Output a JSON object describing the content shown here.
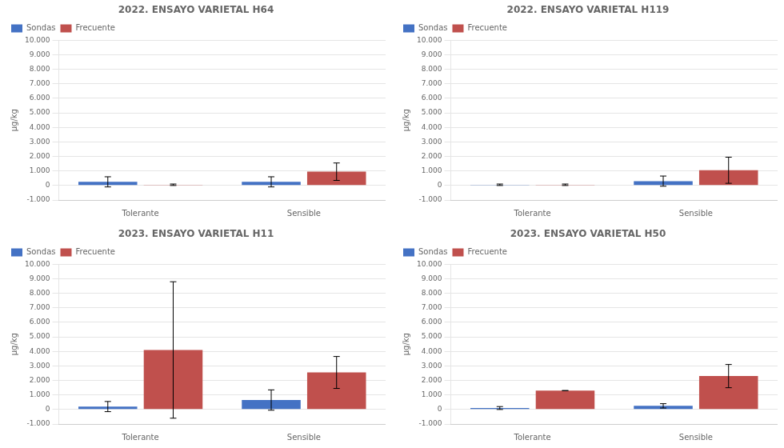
{
  "chart_data": [
    {
      "type": "bar",
      "title": "2022. ENSAYO VARIETAL H64",
      "ylabel": "μg/kg",
      "categories": [
        "Tolerante",
        "Sensible"
      ],
      "series": [
        {
          "name": "Sondas",
          "color": "#4472C4",
          "values": [
            250,
            250
          ],
          "errors": [
            350,
            350
          ]
        },
        {
          "name": "Frecuente",
          "color": "#C0504D",
          "values": [
            50,
            950
          ],
          "errors": [
            50,
            600
          ]
        }
      ],
      "ylim": [
        -1000,
        10000
      ],
      "yticks": [
        {
          "value": -1000,
          "label": "-1.000"
        },
        0,
        {
          "value": 1000,
          "label": "1.000"
        },
        {
          "value": 2000,
          "label": "2.000"
        },
        {
          "value": 3000,
          "label": "3.000"
        },
        {
          "value": 4000,
          "label": "4.000"
        },
        {
          "value": 5000,
          "label": "5.000"
        },
        {
          "value": 6000,
          "label": "6.000"
        },
        {
          "value": 7000,
          "label": "7.000"
        },
        {
          "value": 8000,
          "label": "8.000"
        },
        {
          "value": 9000,
          "label": "9.000"
        },
        {
          "value": 10000,
          "label": "10.000"
        }
      ],
      "grid": true,
      "legend": "upper left"
    },
    {
      "type": "bar",
      "title": "2022. ENSAYO VARIETAL H119",
      "ylabel": "μg/kg",
      "categories": [
        "Tolerante",
        "Sensible"
      ],
      "series": [
        {
          "name": "Sondas",
          "color": "#4472C4",
          "values": [
            50,
            300
          ],
          "errors": [
            50,
            350
          ]
        },
        {
          "name": "Frecuente",
          "color": "#C0504D",
          "values": [
            50,
            1050
          ],
          "errors": [
            50,
            900
          ]
        }
      ],
      "ylim": [
        -1000,
        10000
      ],
      "yticks": [
        {
          "value": -1000,
          "label": "-1.000"
        },
        0,
        {
          "value": 1000,
          "label": "1.000"
        },
        {
          "value": 2000,
          "label": "2.000"
        },
        {
          "value": 3000,
          "label": "3.000"
        },
        {
          "value": 4000,
          "label": "4.000"
        },
        {
          "value": 5000,
          "label": "5.000"
        },
        {
          "value": 6000,
          "label": "6.000"
        },
        {
          "value": 7000,
          "label": "7.000"
        },
        {
          "value": 8000,
          "label": "8.000"
        },
        {
          "value": 9000,
          "label": "9.000"
        },
        {
          "value": 10000,
          "label": "10.000"
        }
      ],
      "grid": true,
      "legend": "upper left"
    },
    {
      "type": "bar",
      "title": "2023. ENSAYO VARIETAL H11",
      "ylabel": "μg/kg",
      "categories": [
        "Tolerante",
        "Sensible"
      ],
      "series": [
        {
          "name": "Sondas",
          "color": "#4472C4",
          "values": [
            200,
            650
          ],
          "errors": [
            350,
            700
          ]
        },
        {
          "name": "Frecuente",
          "color": "#C0504D",
          "values": [
            4100,
            2550
          ],
          "errors": [
            4700,
            1100
          ]
        }
      ],
      "ylim": [
        -1000,
        10000
      ],
      "yticks": [
        {
          "value": -1000,
          "label": "-1.000"
        },
        0,
        {
          "value": 1000,
          "label": "1.000"
        },
        {
          "value": 2000,
          "label": "2.000"
        },
        {
          "value": 3000,
          "label": "3.000"
        },
        {
          "value": 4000,
          "label": "4.000"
        },
        {
          "value": 5000,
          "label": "5.000"
        },
        {
          "value": 6000,
          "label": "6.000"
        },
        {
          "value": 7000,
          "label": "7.000"
        },
        {
          "value": 8000,
          "label": "8.000"
        },
        {
          "value": 9000,
          "label": "9.000"
        },
        {
          "value": 10000,
          "label": "10.000"
        }
      ],
      "grid": true,
      "legend": "upper left"
    },
    {
      "type": "bar",
      "title": "2023. ENSAYO VARIETAL H50",
      "ylabel": "μg/kg",
      "categories": [
        "Tolerante",
        "Sensible"
      ],
      "series": [
        {
          "name": "Sondas",
          "color": "#4472C4",
          "values": [
            100,
            250
          ],
          "errors": [
            100,
            150
          ]
        },
        {
          "name": "Frecuente",
          "color": "#C0504D",
          "values": [
            1300,
            2300
          ],
          "errors": [
            0,
            800
          ]
        }
      ],
      "ylim": [
        -1000,
        10000
      ],
      "yticks": [
        {
          "value": -1000,
          "label": "-1.000"
        },
        0,
        {
          "value": 1000,
          "label": "1.000"
        },
        {
          "value": 2000,
          "label": "2.000"
        },
        {
          "value": 3000,
          "label": "3.000"
        },
        {
          "value": 4000,
          "label": "4.000"
        },
        {
          "value": 5000,
          "label": "5.000"
        },
        {
          "value": 6000,
          "label": "6.000"
        },
        {
          "value": 7000,
          "label": "7.000"
        },
        {
          "value": 8000,
          "label": "8.000"
        },
        {
          "value": 9000,
          "label": "9.000"
        },
        {
          "value": 10000,
          "label": "10.000"
        }
      ],
      "grid": true,
      "legend": "upper left"
    }
  ]
}
